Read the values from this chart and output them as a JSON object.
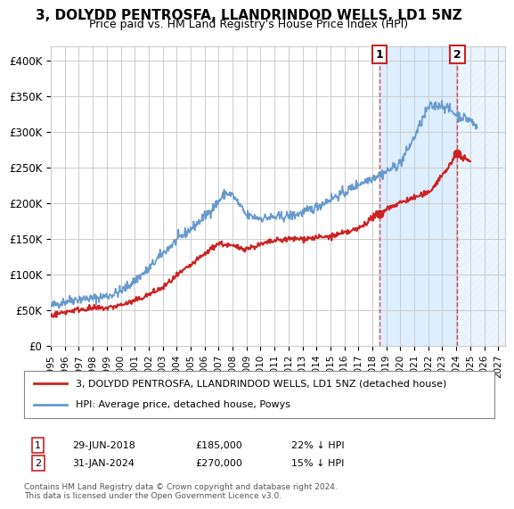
{
  "title": "3, DOLYDD PENTROSFA, LLANDRINDOD WELLS, LD1 5NZ",
  "subtitle": "Price paid vs. HM Land Registry's House Price Index (HPI)",
  "ylabel_ticks": [
    0,
    50000,
    100000,
    150000,
    200000,
    250000,
    300000,
    350000,
    400000
  ],
  "ylabel_labels": [
    "£0",
    "£50K",
    "£100K",
    "£150K",
    "£200K",
    "£250K",
    "£300K",
    "£350K",
    "£400K"
  ],
  "ylim": [
    0,
    420000
  ],
  "xlim_start": 1995.0,
  "xlim_end": 2027.5,
  "hpi_color": "#6699cc",
  "price_color": "#cc2222",
  "marker1_date": 2018.49,
  "marker1_price": 185000,
  "marker2_date": 2024.08,
  "marker2_price": 270000,
  "marker1_label": "29-JUN-2018",
  "marker2_label": "31-JAN-2024",
  "marker1_pct": "22% ↓ HPI",
  "marker2_pct": "15% ↓ HPI",
  "legend_line1": "3, DOLYDD PENTROSFA, LLANDRINDOD WELLS, LD1 5NZ (detached house)",
  "legend_line2": "HPI: Average price, detached house, Powys",
  "footnote": "Contains HM Land Registry data © Crown copyright and database right 2024.\nThis data is licensed under the Open Government Licence v3.0.",
  "background_color": "#ffffff",
  "grid_color": "#cccccc",
  "shade_color": "#ddeeff",
  "hatch_color": "#aabbcc"
}
